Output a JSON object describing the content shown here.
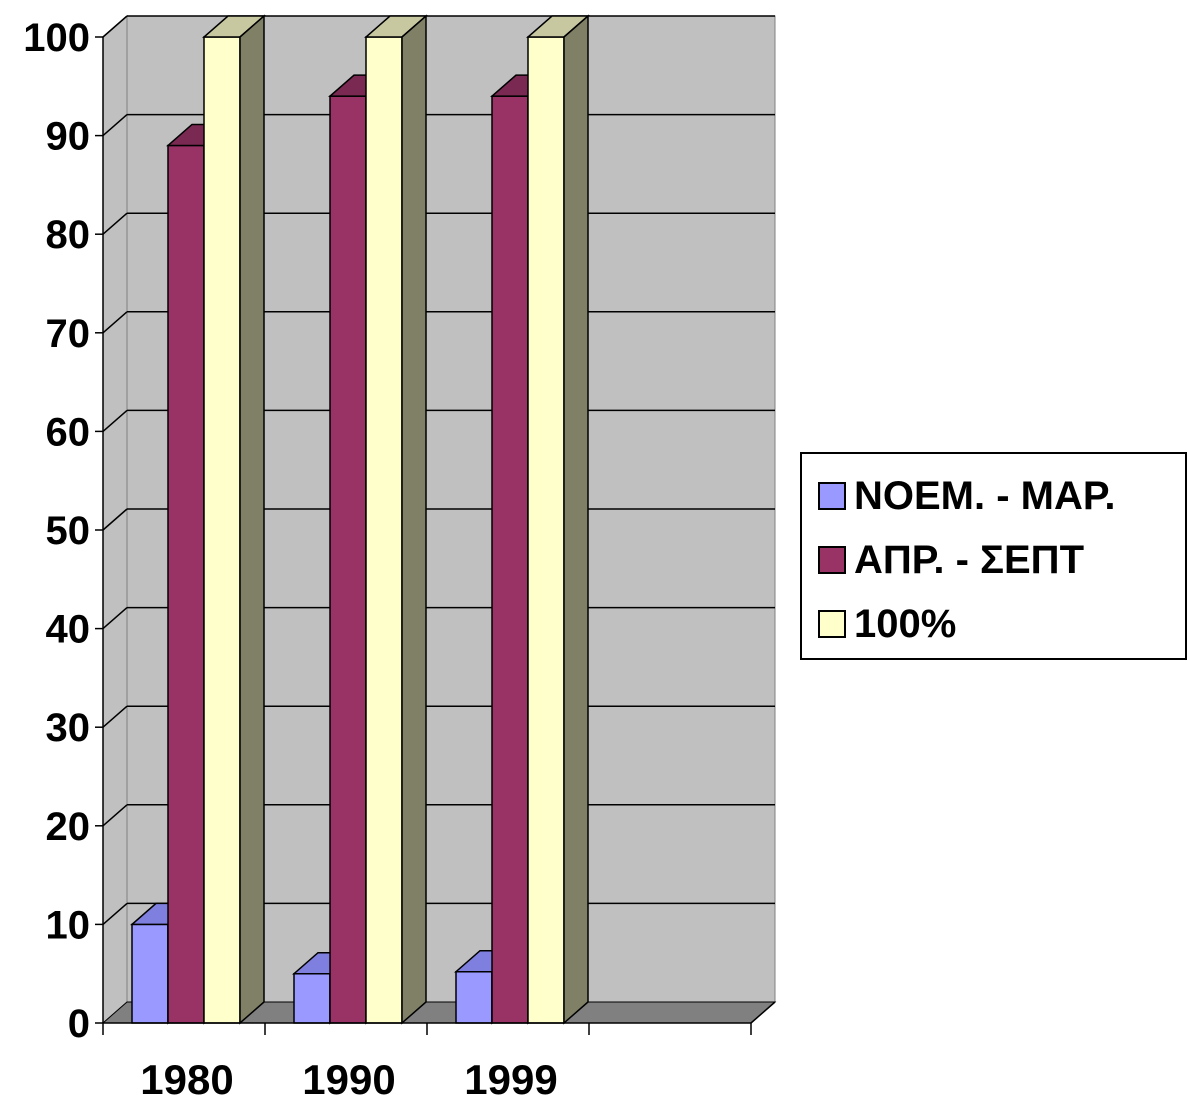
{
  "chart_data": {
    "type": "bar",
    "categories": [
      "1980",
      "1990",
      "1999",
      ""
    ],
    "series": [
      {
        "name": "ΝΟΕΜ. - ΜΑΡ.",
        "values": [
          10,
          5,
          5.2,
          null
        ],
        "color": "#9999ff",
        "side_color": "#7070c8",
        "top_color": "#7f7fe0"
      },
      {
        "name": "ΑΠΡ. - ΣΕΠΤ",
        "values": [
          89,
          94,
          94,
          null
        ],
        "color": "#993366",
        "side_color": "#5c1f3d",
        "top_color": "#7a2a52"
      },
      {
        "name": "100%",
        "values": [
          100,
          100,
          100,
          null
        ],
        "color": "#ffffcc",
        "side_color": "#808066",
        "top_color": "#c8c8a0"
      }
    ],
    "y_ticks": [
      "0",
      "10",
      "20",
      "30",
      "40",
      "50",
      "60",
      "70",
      "80",
      "90",
      "100"
    ],
    "ylim": [
      0,
      100
    ],
    "grid": true,
    "legend_position": "right",
    "wall_color": "#c0c0c0",
    "floor_color": "#808080"
  }
}
